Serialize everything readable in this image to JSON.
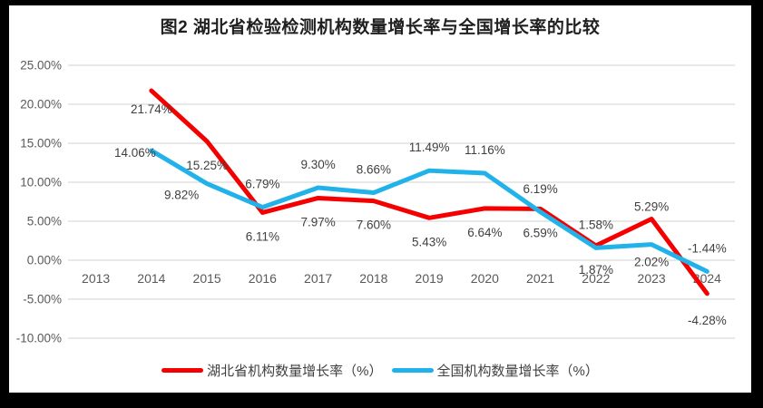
{
  "chart": {
    "title": "图2  湖北省检验检测机构数量增长率与全国增长率的比较"
  },
  "chart_data": {
    "type": "line",
    "title": "图2  湖北省检验检测机构数量增长率与全国增长率的比较",
    "categories": [
      "2013",
      "2014",
      "2015",
      "2016",
      "2017",
      "2018",
      "2019",
      "2020",
      "2021",
      "2022",
      "2023",
      "2024"
    ],
    "series": [
      {
        "name": "湖北省机构数量增长率（%）",
        "color": "#f40000",
        "values": [
          null,
          21.74,
          15.25,
          6.11,
          7.97,
          7.6,
          5.43,
          6.64,
          6.59,
          1.87,
          5.29,
          -4.28
        ]
      },
      {
        "name": "全国机构数量增长率（%）",
        "color": "#22b2ea",
        "values": [
          null,
          14.06,
          9.82,
          6.79,
          9.3,
          8.66,
          11.49,
          11.16,
          6.19,
          1.58,
          2.02,
          -1.44
        ]
      }
    ],
    "ylim": [
      -10,
      25
    ],
    "ytick_step": 5,
    "ytick_labels": [
      "25.00%",
      "20.00%",
      "15.00%",
      "10.00%",
      "5.00%",
      "0.00%",
      "-5.00%",
      "-10.00%"
    ],
    "label_format": "0.00%",
    "grid": true,
    "data_labels": true,
    "legend_position": "bottom"
  },
  "style_colors": {
    "gridline": "#d9d9d9",
    "axis_text": "#595959",
    "data_label_text": "#3f3f3f"
  }
}
